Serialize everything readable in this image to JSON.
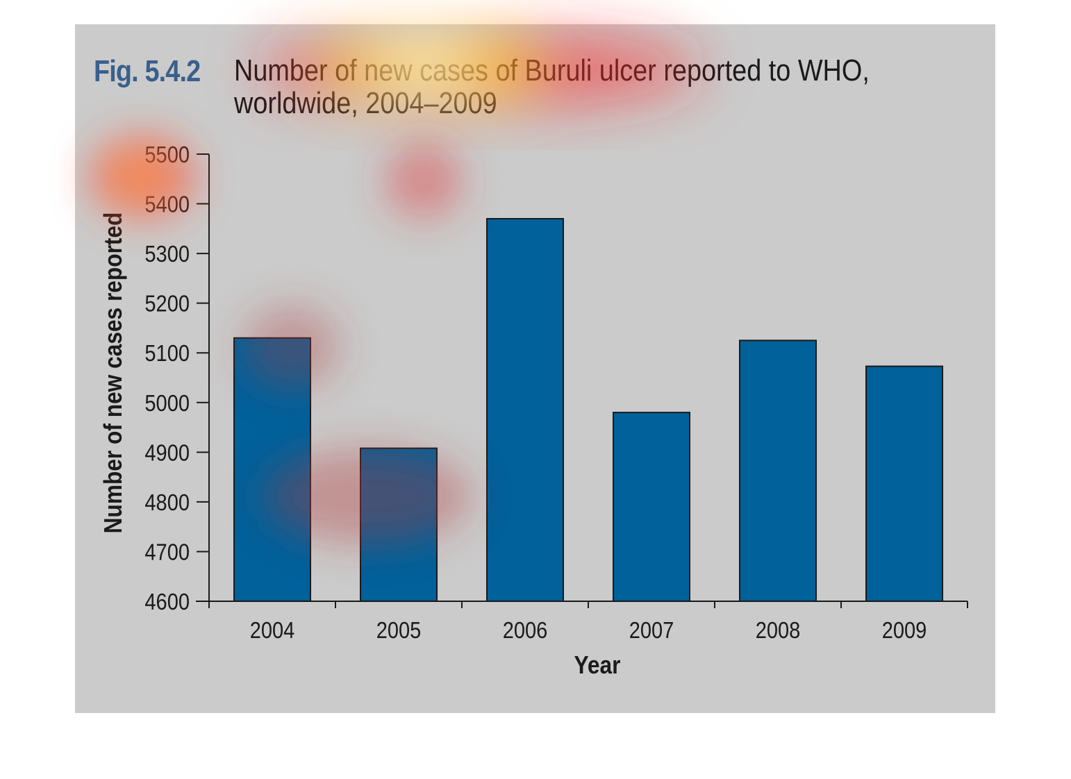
{
  "figure": {
    "label": "Fig. 5.4.2",
    "title_line1": "Number of new cases of Buruli ulcer reported to WHO,",
    "title_line2": "worldwide, 2004–2009"
  },
  "chart_data": {
    "type": "bar",
    "title": "Number of new cases of Buruli ulcer reported to WHO, worldwide, 2004–2009",
    "xlabel": "Year",
    "ylabel": "Number of new cases reported",
    "categories": [
      "2004",
      "2005",
      "2006",
      "2007",
      "2008",
      "2009"
    ],
    "values": [
      5130,
      4908,
      5370,
      4980,
      5125,
      5073
    ],
    "ylim": [
      4600,
      5500
    ],
    "yticks": [
      4600,
      4700,
      4800,
      4900,
      5000,
      5100,
      5200,
      5300,
      5400,
      5500
    ],
    "grid": false,
    "legend": "none",
    "bar_color": "#00619b",
    "background_color": "#cbcbcb"
  }
}
